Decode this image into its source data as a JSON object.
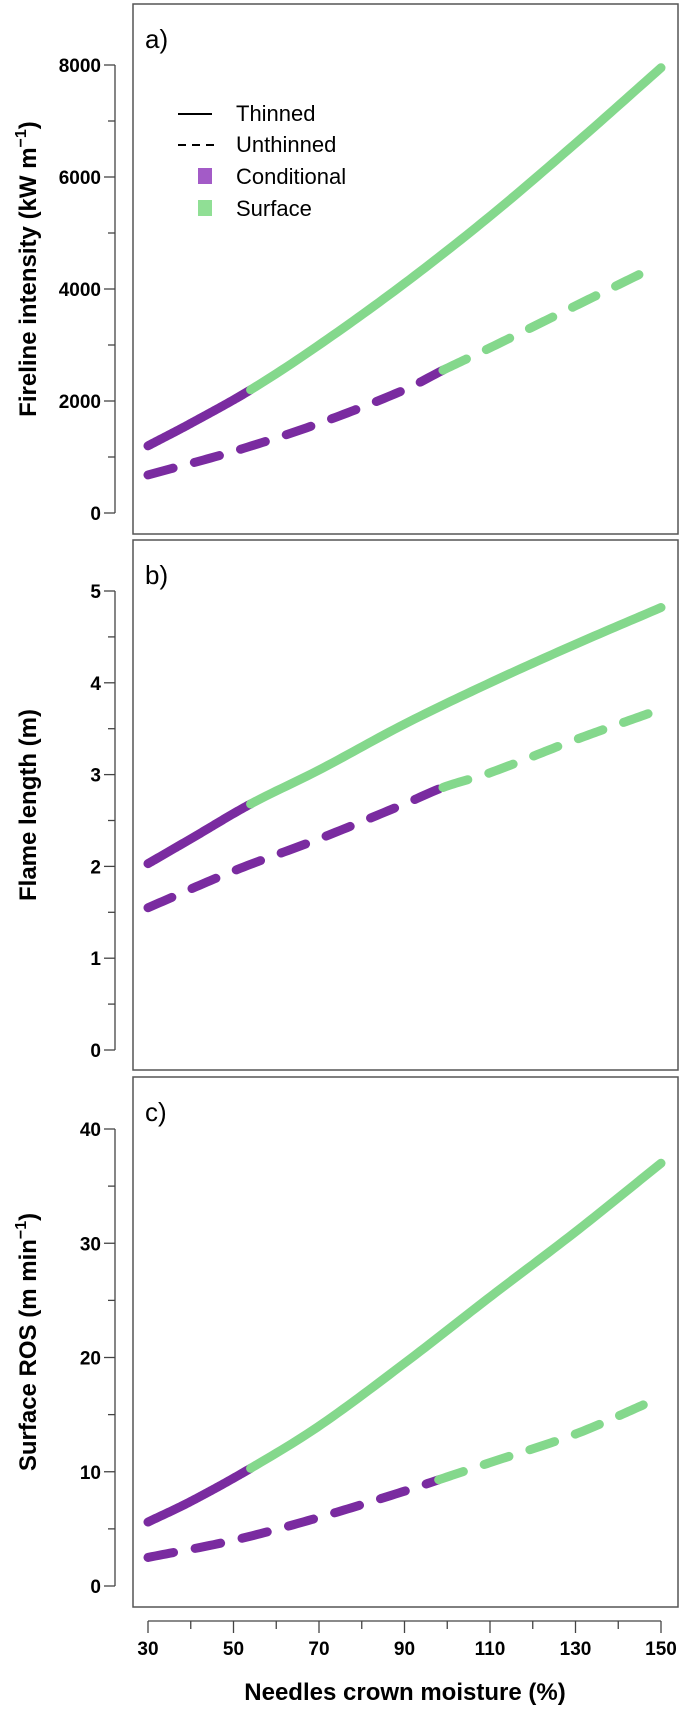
{
  "colors": {
    "conditional": "#7a2ba0",
    "surface": "#84d88c",
    "legend_conditional": "#a35bc7",
    "legend_surface": "#90df95"
  },
  "legend": {
    "thinned": "Thinned",
    "unthinned": "Unthinned",
    "conditional": "Conditional",
    "surface": "Surface"
  },
  "xlabel": "Needles crown moisture (%)",
  "chart_data": [
    {
      "type": "line",
      "panel_label": "a)",
      "ylabel": "Fireline intensity (kW m",
      "ylabel_superscript": "−1",
      "ylabel_close": ")",
      "xlim": [
        30,
        150
      ],
      "ylim": [
        0,
        8000
      ],
      "yticks": [
        0,
        2000,
        4000,
        6000,
        8000
      ],
      "ytick_labels": [
        "0",
        "2000",
        "4000",
        "6000",
        "8000"
      ],
      "legend_position": "top-left",
      "series": [
        {
          "name": "Thinned",
          "style": "solid",
          "x": [
            30,
            40,
            54,
            70,
            90,
            110,
            130,
            150
          ],
          "y": [
            1200,
            1600,
            2200,
            3000,
            4100,
            5300,
            6600,
            7950
          ],
          "conditional_until": 54
        },
        {
          "name": "Unthinned",
          "style": "dashed",
          "x": [
            30,
            50,
            70,
            90,
            99,
            110,
            130,
            146
          ],
          "y": [
            680,
            1100,
            1600,
            2200,
            2550,
            2950,
            3700,
            4300
          ],
          "conditional_until": 99
        }
      ]
    },
    {
      "type": "line",
      "panel_label": "b)",
      "ylabel": "Flame length (m)",
      "xlim": [
        30,
        150
      ],
      "ylim": [
        0,
        5
      ],
      "yticks": [
        0,
        1,
        2,
        3,
        4,
        5
      ],
      "ytick_labels": [
        "0",
        "1",
        "2",
        "3",
        "4",
        "5"
      ],
      "series": [
        {
          "name": "Thinned",
          "style": "solid",
          "x": [
            30,
            40,
            54,
            70,
            90,
            110,
            130,
            150
          ],
          "y": [
            2.03,
            2.3,
            2.68,
            3.05,
            3.55,
            4.0,
            4.42,
            4.82
          ],
          "conditional_until": 54
        },
        {
          "name": "Unthinned",
          "style": "dashed",
          "x": [
            30,
            50,
            70,
            90,
            99,
            110,
            130,
            148
          ],
          "y": [
            1.55,
            1.95,
            2.3,
            2.68,
            2.86,
            3.02,
            3.38,
            3.68
          ],
          "conditional_until": 99
        }
      ]
    },
    {
      "type": "line",
      "panel_label": "c)",
      "ylabel": "Surface ROS (m min",
      "ylabel_superscript": "−1",
      "ylabel_close": ")",
      "xlim": [
        30,
        150
      ],
      "ylim": [
        0,
        40
      ],
      "yticks": [
        0,
        10,
        20,
        30,
        40
      ],
      "ytick_labels": [
        "0",
        "10",
        "20",
        "30",
        "40"
      ],
      "xticks": [
        30,
        50,
        70,
        90,
        110,
        130,
        150
      ],
      "xtick_labels": [
        "30",
        "50",
        "70",
        "90",
        "110",
        "130",
        "150"
      ],
      "series": [
        {
          "name": "Thinned",
          "style": "solid",
          "x": [
            30,
            40,
            54,
            70,
            90,
            110,
            130,
            150
          ],
          "y": [
            5.6,
            7.4,
            10.3,
            14.0,
            19.5,
            25.3,
            31.0,
            37.0
          ],
          "conditional_until": 54
        },
        {
          "name": "Unthinned",
          "style": "dashed",
          "x": [
            30,
            50,
            70,
            90,
            98,
            110,
            130,
            148
          ],
          "y": [
            2.5,
            4.0,
            6.0,
            8.3,
            9.3,
            10.8,
            13.3,
            16.2
          ],
          "conditional_until": 98
        }
      ]
    }
  ]
}
